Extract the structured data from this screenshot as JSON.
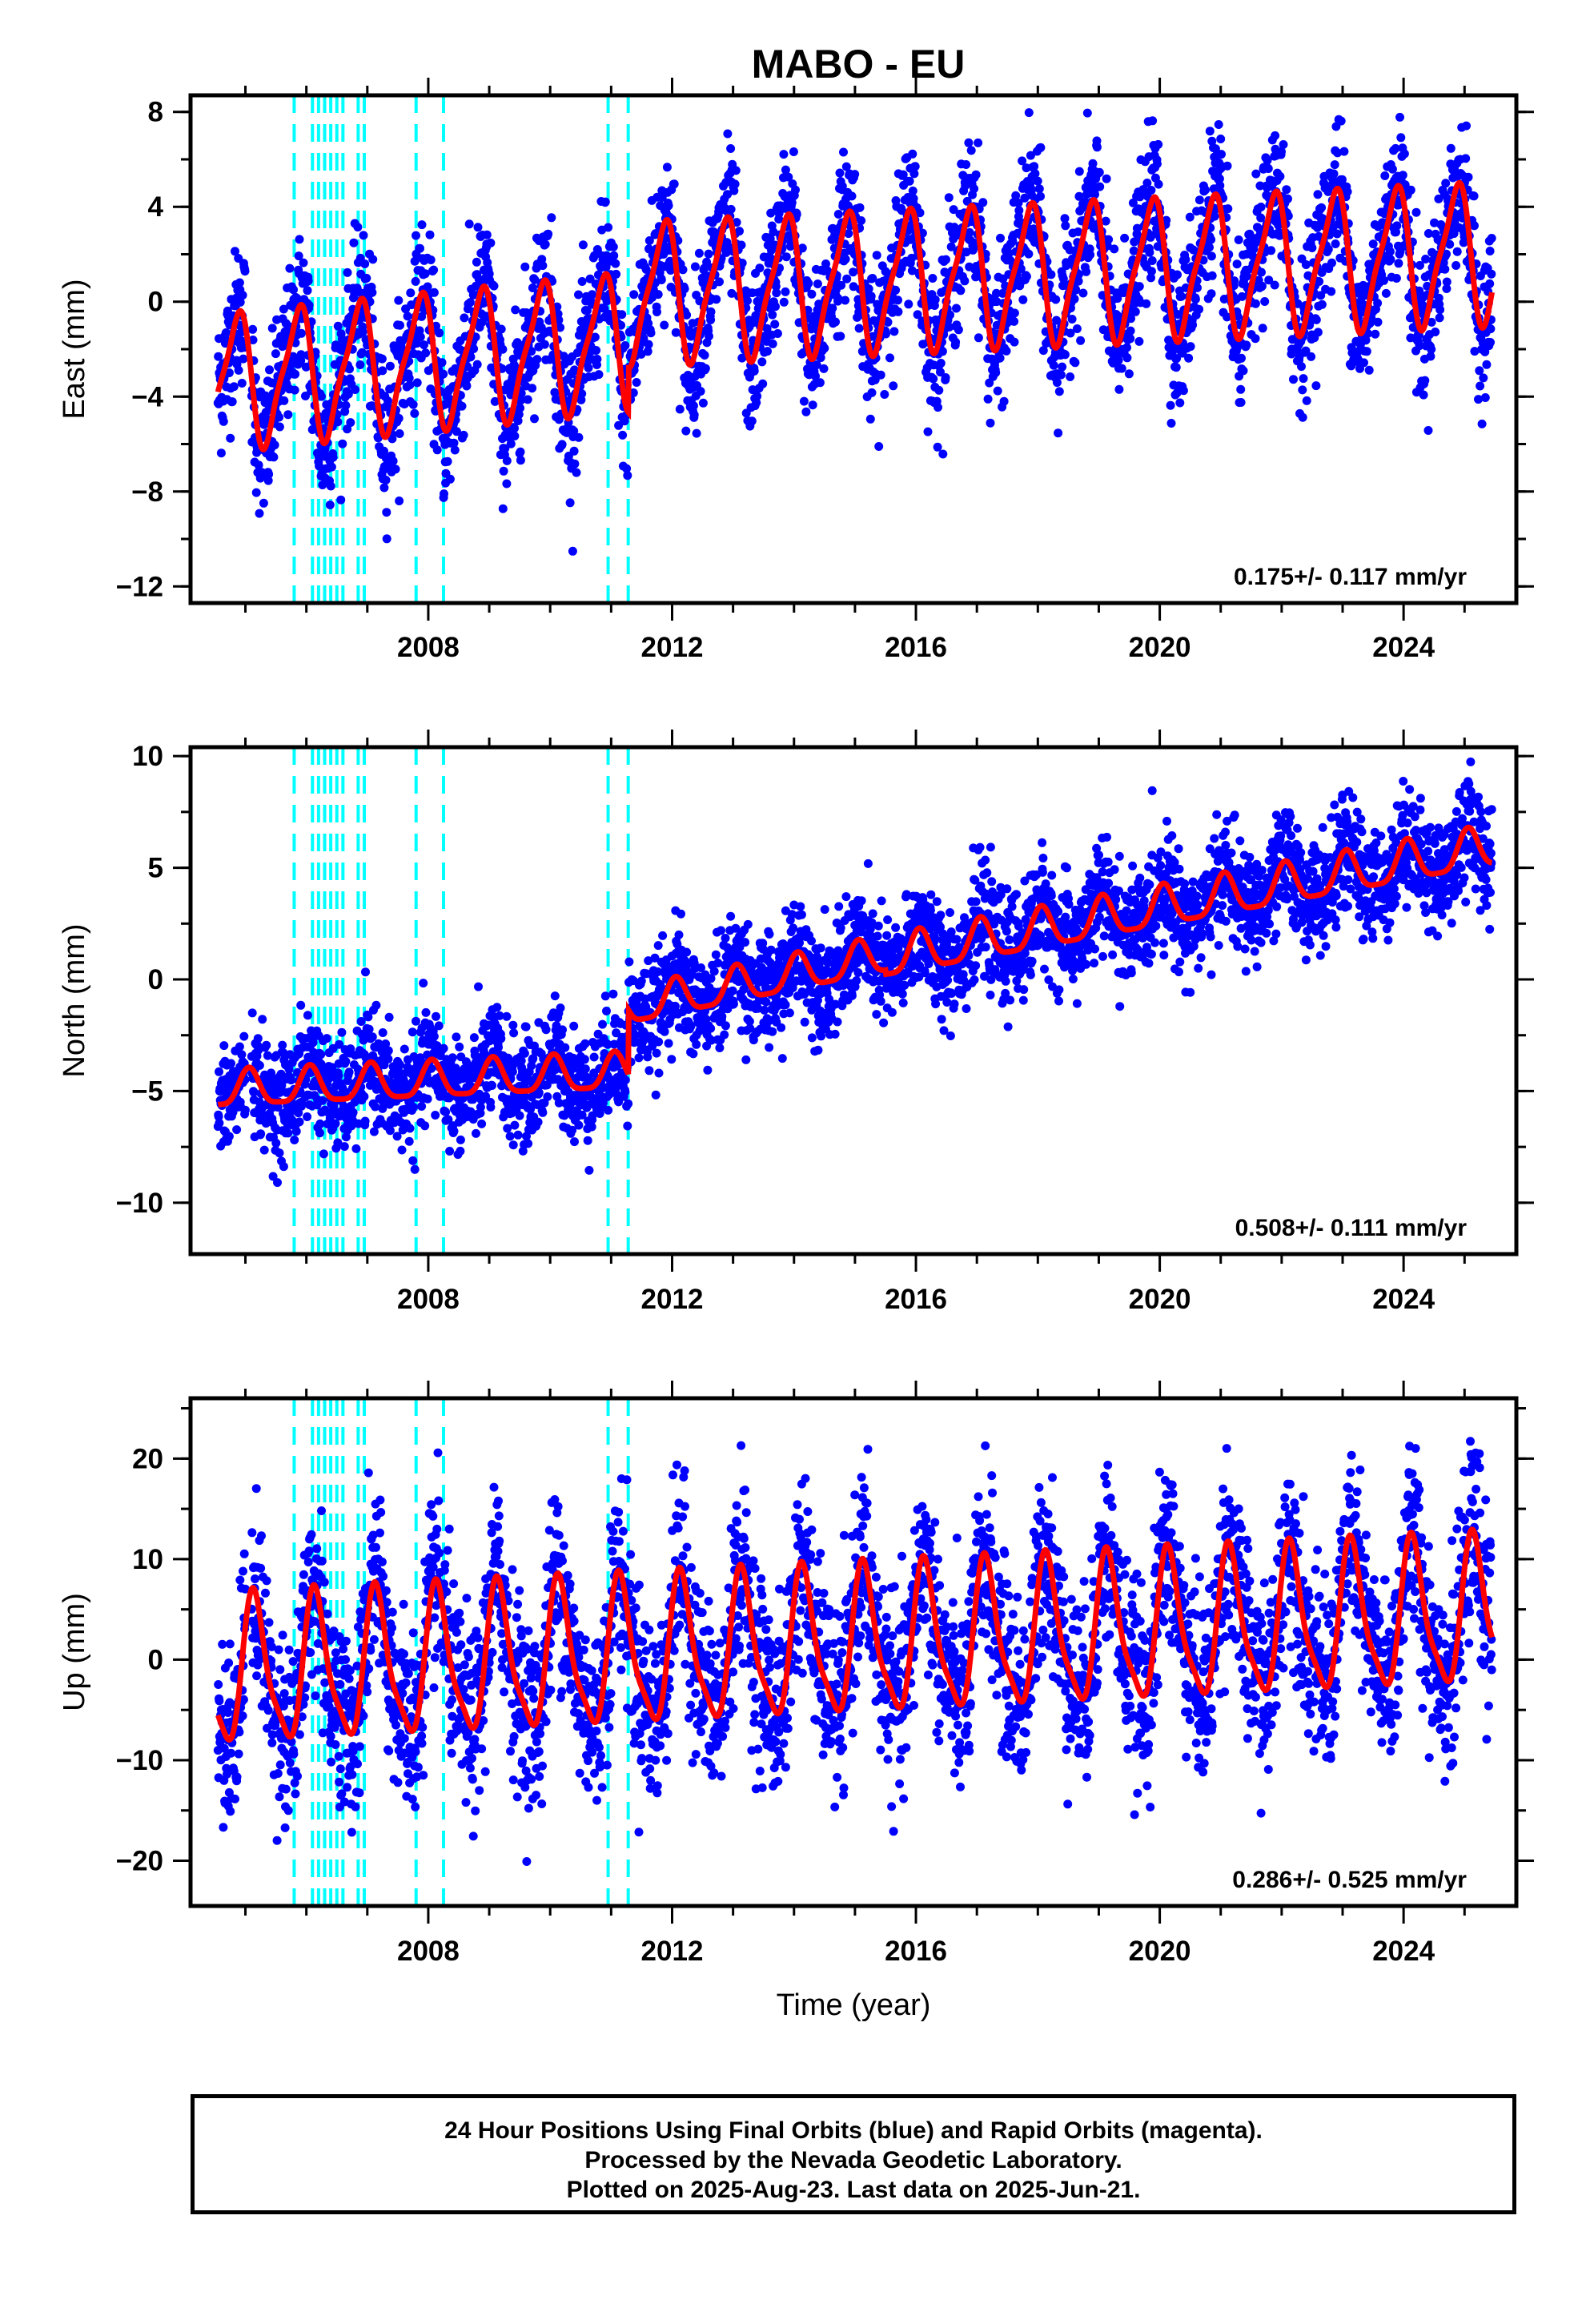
{
  "title": "MABO - EU",
  "footer": {
    "line1": "24 Hour Positions Using Final Orbits (blue) and Rapid Orbits (magenta).",
    "line2": "Processed by the Nevada Geodetic Laboratory.",
    "line3": "Plotted on 2025-Aug-23. Last data on 2025-Jun-21."
  },
  "colors": {
    "data": "#0000ff",
    "model": "#ff0000",
    "equipment_changes": "#00ffff",
    "frame": "#000000"
  },
  "chart_data": [
    {
      "type": "scatter",
      "panel": "east",
      "ylabel": "East (mm)",
      "xlabel": "",
      "xlim": [
        2004.1,
        2025.85
      ],
      "ylim": [
        -12.7,
        8.7
      ],
      "xticks": [
        2008,
        2012,
        2016,
        2020,
        2024
      ],
      "yticks": [
        -12,
        -8,
        -4,
        0,
        4,
        8
      ],
      "tick_labels_y": [
        "−12",
        "−8",
        "−4",
        "0",
        "4",
        "8"
      ],
      "rate_text": "0.175+/- 0.117 mm/yr",
      "step_lines_x": [
        2005.8,
        2006.1,
        2006.2,
        2006.3,
        2006.4,
        2006.5,
        2006.6,
        2006.85,
        2006.95,
        2007.8,
        2008.25,
        2010.95,
        2011.28
      ],
      "model": {
        "t0": 2004.55,
        "t_end": 2025.45,
        "segments": [
          {
            "from": 2004.55,
            "to": 2011.28,
            "offset": -3.4,
            "rate": 0.26,
            "amp": 2.7
          },
          {
            "from": 2011.28,
            "to": 2025.45,
            "offset": 0.35,
            "rate": 0.12,
            "amp": 2.8
          }
        ],
        "annual_phase": 2.5
      },
      "observed_range": {
        "noise": 1.5
      },
      "gap": {
        "from": 2005.0,
        "to": 2005.1
      }
    },
    {
      "type": "scatter",
      "panel": "north",
      "ylabel": "North (mm)",
      "xlabel": "",
      "xlim": [
        2004.1,
        2025.85
      ],
      "ylim": [
        -12.3,
        10.4
      ],
      "xticks": [
        2008,
        2012,
        2016,
        2020,
        2024
      ],
      "yticks": [
        -10,
        -5,
        0,
        5,
        10
      ],
      "tick_labels_y": [
        "−10",
        "−5",
        "0",
        "5",
        "10"
      ],
      "rate_text": "0.508+/- 0.111 mm/yr",
      "step_lines_x": [
        2005.8,
        2006.1,
        2006.2,
        2006.3,
        2006.4,
        2006.5,
        2006.6,
        2006.85,
        2006.95,
        2007.8,
        2008.25,
        2010.95,
        2011.28
      ],
      "model": {
        "t0": 2004.55,
        "t_end": 2025.45,
        "segments": [
          {
            "from": 2004.55,
            "to": 2011.28,
            "offset": -5.0,
            "rate": 0.12,
            "amp": 0.8
          },
          {
            "from": 2011.28,
            "to": 2015.5,
            "offset": -1.3,
            "rate": 0.55,
            "amp": 0.8
          },
          {
            "from": 2015.5,
            "to": 2025.45,
            "offset": 0.9,
            "rate": 0.5,
            "amp": 0.9
          }
        ],
        "annual_phase": 1.2
      },
      "observed_range": {
        "noise": 1.2
      },
      "gap": {
        "from": 2005.0,
        "to": 2005.1
      }
    },
    {
      "type": "scatter",
      "panel": "up",
      "ylabel": "Up (mm)",
      "xlabel": "Time (year)",
      "xlim": [
        2004.1,
        2025.85
      ],
      "ylim": [
        -24.5,
        26.0
      ],
      "xticks": [
        2008,
        2012,
        2016,
        2020,
        2024
      ],
      "yticks": [
        -20,
        -10,
        0,
        10,
        20
      ],
      "tick_labels_y": [
        "−20",
        "−10",
        "0",
        "10",
        "20"
      ],
      "rate_text": "0.286+/- 0.525 mm/yr",
      "step_lines_x": [
        2005.8,
        2006.1,
        2006.2,
        2006.3,
        2006.4,
        2006.5,
        2006.6,
        2006.85,
        2006.95,
        2007.8,
        2008.25,
        2010.95,
        2011.28
      ],
      "model": {
        "t0": 2004.55,
        "t_end": 2025.45,
        "segments": [
          {
            "from": 2004.55,
            "to": 2025.45,
            "offset": -1.5,
            "rate": 0.29,
            "amp": 7.0
          }
        ],
        "annual_phase": 0.6
      },
      "observed_range": {
        "noise": 4.5
      },
      "gap": {
        "from": 2005.0,
        "to": 2005.1
      }
    }
  ]
}
